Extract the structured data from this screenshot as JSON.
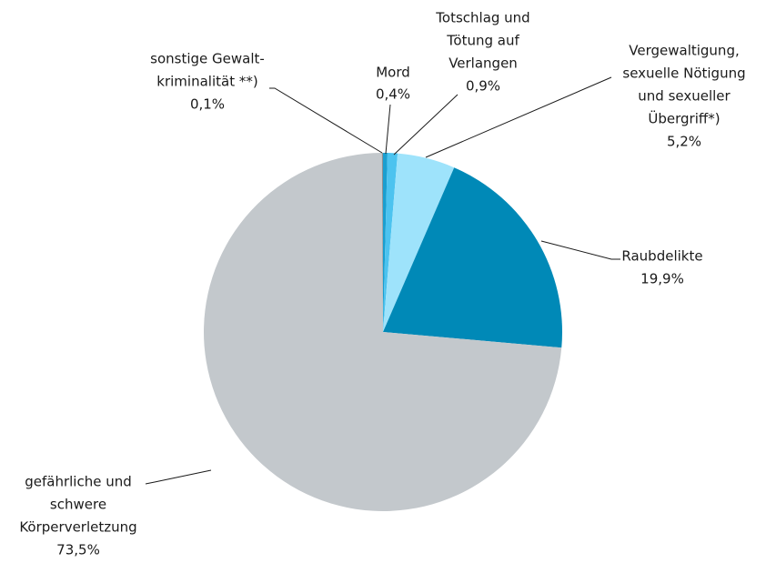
{
  "chart_data": {
    "type": "pie",
    "categories": [
      [
        "Mord"
      ],
      [
        "Totschlag und",
        "Tötung auf",
        "Verlangen"
      ],
      [
        "Vergewaltigung,",
        "sexuelle Nötigung",
        "und sexueller",
        "Übergriff*)"
      ],
      [
        "Raubdelikte"
      ],
      [
        "gefährliche und",
        "schwere",
        "Körperverletzung"
      ],
      [
        "sonstige Gewalt-",
        "kriminalität **)"
      ]
    ],
    "values": [
      0.4,
      0.9,
      5.2,
      19.9,
      73.5,
      0.1
    ],
    "value_labels": [
      "0,4%",
      "0,9%",
      "5,2%",
      "19,9%",
      "73,5%",
      "0,1%"
    ],
    "colors": [
      "#1a9fd0",
      "#4cc3ef",
      "#9ee3fb",
      "#0089b7",
      "#c3c8cc",
      "#8a8f93"
    ]
  }
}
